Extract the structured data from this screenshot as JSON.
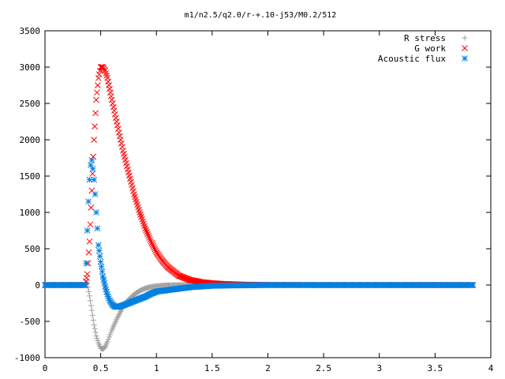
{
  "chart_data": {
    "type": "scatter",
    "title": "m1/n2.5/q2.0/r-+.10-j53/M0.2/512",
    "xlabel": "",
    "ylabel": "",
    "xlim": [
      0,
      4
    ],
    "ylim": [
      -1000,
      3500
    ],
    "x_ticks": [
      "0",
      "0.5",
      "1",
      "1.5",
      "2",
      "2.5",
      "3",
      "3.5",
      "4"
    ],
    "y_ticks": [
      "-1000",
      "-500",
      "0",
      "500",
      "1000",
      "1500",
      "2000",
      "2500",
      "3000",
      "3500"
    ],
    "grid": false,
    "legend_position": "top-right",
    "series": [
      {
        "name": "R stress",
        "marker": "plus",
        "color": "#a0a0a0",
        "x": [
          0.0,
          0.2,
          0.36,
          0.38,
          0.4,
          0.42,
          0.44,
          0.46,
          0.48,
          0.5,
          0.52,
          0.54,
          0.56,
          0.6,
          0.65,
          0.7,
          0.75,
          0.8,
          0.85,
          0.9,
          0.95,
          1.0,
          1.05,
          1.1,
          1.2,
          1.3,
          1.5,
          1.8,
          2.2,
          2.8,
          3.4,
          3.84
        ],
        "y": [
          0,
          0,
          0,
          30,
          -150,
          -350,
          -550,
          -700,
          -800,
          -870,
          -880,
          -850,
          -780,
          -620,
          -450,
          -300,
          -200,
          -130,
          -80,
          -45,
          -25,
          -15,
          -8,
          -3,
          0,
          0,
          0,
          0,
          0,
          0,
          0,
          0
        ]
      },
      {
        "name": "G work",
        "marker": "cross",
        "color": "#ff0000",
        "x": [
          0.0,
          0.2,
          0.36,
          0.38,
          0.4,
          0.42,
          0.44,
          0.46,
          0.48,
          0.5,
          0.52,
          0.54,
          0.56,
          0.58,
          0.6,
          0.65,
          0.7,
          0.75,
          0.8,
          0.85,
          0.9,
          0.95,
          1.0,
          1.05,
          1.1,
          1.2,
          1.3,
          1.4,
          1.5,
          1.6,
          1.8,
          2.0,
          2.5,
          3.0,
          3.84
        ],
        "y": [
          0,
          0,
          0,
          150,
          600,
          1300,
          2000,
          2550,
          2850,
          3000,
          3000,
          2950,
          2850,
          2700,
          2550,
          2200,
          1850,
          1550,
          1250,
          1000,
          780,
          600,
          450,
          340,
          250,
          130,
          70,
          40,
          25,
          15,
          5,
          2,
          0,
          0,
          0
        ]
      },
      {
        "name": "Acoustic flux",
        "marker": "star",
        "color": "#0080e0",
        "x": [
          0.0,
          0.2,
          0.36,
          0.37,
          0.38,
          0.39,
          0.4,
          0.41,
          0.42,
          0.43,
          0.44,
          0.45,
          0.46,
          0.47,
          0.48,
          0.5,
          0.52,
          0.54,
          0.56,
          0.58,
          0.6,
          0.62,
          0.64,
          0.66,
          0.68,
          0.7,
          0.75,
          0.8,
          0.85,
          0.9,
          0.95,
          1.0,
          1.05,
          1.1,
          1.15,
          1.2,
          1.3,
          1.4,
          1.5,
          1.7,
          2.0,
          2.5,
          3.0,
          3.5,
          3.84
        ],
        "y": [
          0,
          0,
          0,
          300,
          750,
          1150,
          1450,
          1650,
          1720,
          1600,
          1450,
          1250,
          1000,
          780,
          550,
          320,
          120,
          -20,
          -130,
          -210,
          -260,
          -290,
          -300,
          -300,
          -290,
          -280,
          -250,
          -220,
          -190,
          -160,
          -120,
          -90,
          -80,
          -70,
          -60,
          -50,
          -30,
          -20,
          -10,
          -5,
          0,
          0,
          0,
          0,
          0
        ]
      }
    ]
  }
}
